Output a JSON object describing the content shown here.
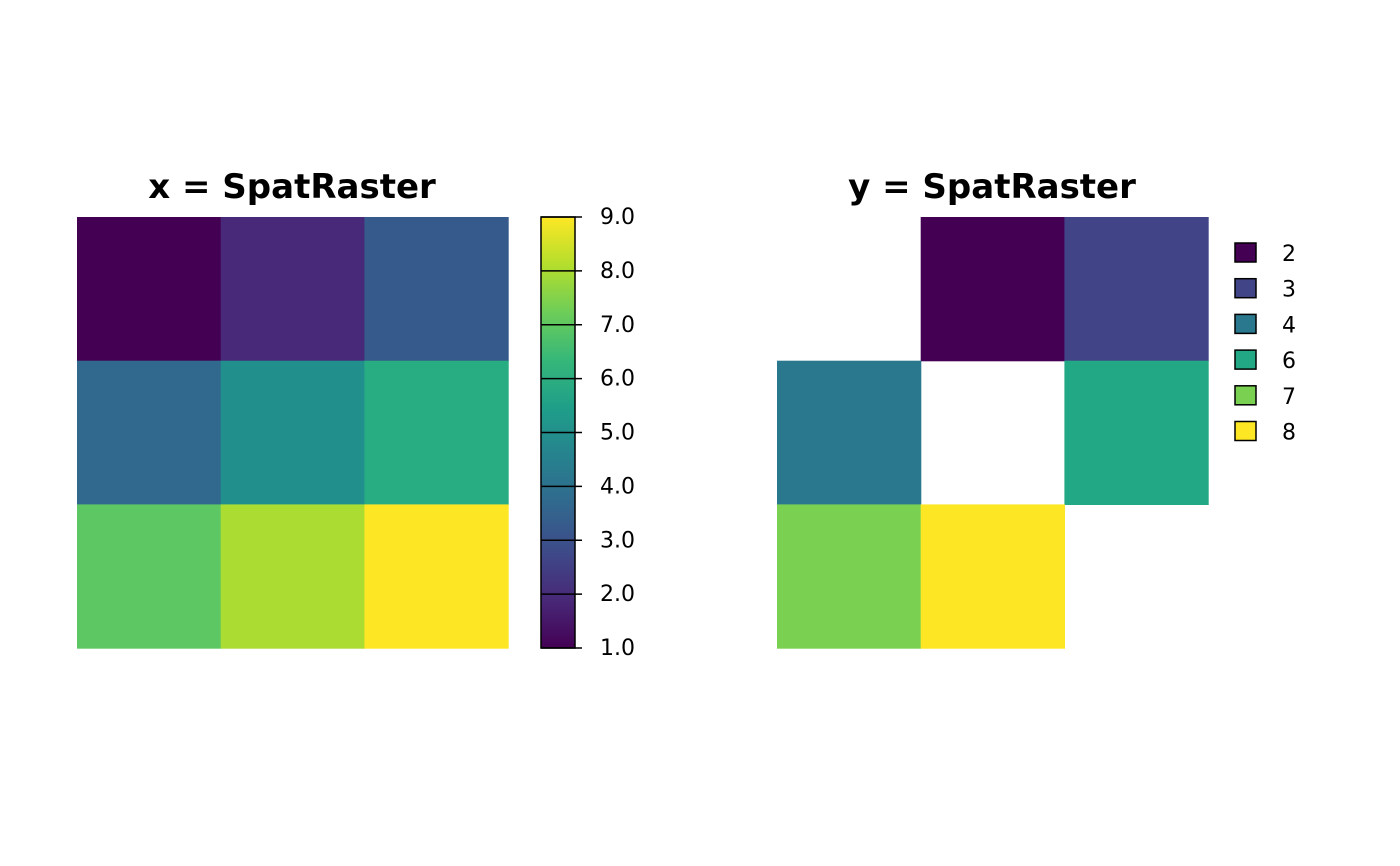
{
  "chart_data": [
    {
      "type": "heatmap",
      "title": "x = SpatRaster",
      "nrow": 3,
      "ncol": 3,
      "values": [
        [
          1,
          2,
          3
        ],
        [
          4,
          5,
          6
        ],
        [
          7,
          8,
          9
        ]
      ],
      "colorbar": {
        "range": [
          1.0,
          9.0
        ],
        "ticks": [
          "1.0",
          "2.0",
          "3.0",
          "4.0",
          "5.0",
          "6.0",
          "7.0",
          "8.0",
          "9.0"
        ],
        "colors": [
          "#440154",
          "#482878",
          "#3E4A89",
          "#31688E",
          "#26828E",
          "#1F9E89",
          "#35B779",
          "#6DCD59",
          "#B4DE2C",
          "#FDE725"
        ]
      },
      "cell_colors": [
        [
          "#440154",
          "#482878",
          "#375A8C"
        ],
        [
          "#31688E",
          "#21908C",
          "#27AD81"
        ],
        [
          "#5DC863",
          "#AADC32",
          "#FDE725"
        ]
      ]
    },
    {
      "type": "heatmap",
      "title": "y = SpatRaster",
      "nrow": 3,
      "ncol": 3,
      "values": [
        [
          null,
          2,
          3
        ],
        [
          4,
          null,
          6
        ],
        [
          7,
          8,
          null
        ]
      ],
      "legend": {
        "position": "right",
        "entries": [
          {
            "label": "2",
            "color": "#440154"
          },
          {
            "label": "3",
            "color": "#414487"
          },
          {
            "label": "4",
            "color": "#2A788E"
          },
          {
            "label": "6",
            "color": "#22A884"
          },
          {
            "label": "7",
            "color": "#7AD151"
          },
          {
            "label": "8",
            "color": "#FDE725"
          }
        ]
      }
    }
  ]
}
